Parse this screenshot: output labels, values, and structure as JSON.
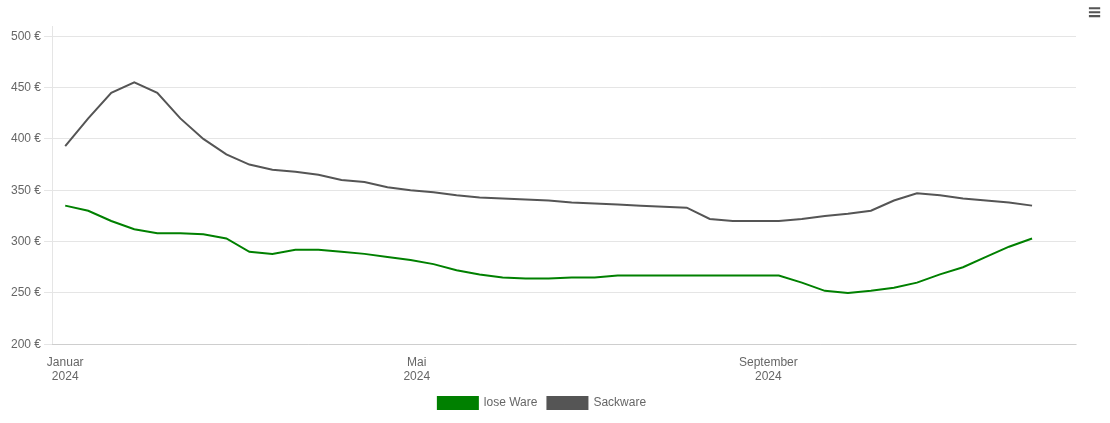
{
  "chart_data": {
    "type": "line",
    "x": [
      0,
      0.2619047619,
      0.5238095238,
      0.7857142857,
      1.0476190476,
      1.3095238095,
      1.5714285714,
      1.8333333333,
      2.0952380952,
      2.3571428571,
      2.619047619,
      2.880952381,
      3.1428571429,
      3.4047619048,
      3.6666666667,
      3.9285714286,
      4.1904761905,
      4.4523809524,
      4.7142857143,
      4.9761904762,
      5.2380952381,
      5.5,
      5.7619047619,
      6.0238095238,
      6.2857142857,
      6.5476190476,
      6.8095238095,
      7.0714285714,
      7.3333333333,
      7.5952380952,
      7.8571428571,
      8.119047619,
      8.380952381,
      8.6428571429,
      8.9047619048,
      9.1666666667,
      9.4285714286,
      9.6904761905,
      9.9523809524,
      10.2142857143,
      10.4761904762,
      10.7380952381,
      11
    ],
    "series": [
      {
        "name": "lose Ware",
        "color": "#008000",
        "values": [
          335,
          330,
          320,
          312,
          308,
          308,
          307,
          303,
          290,
          288,
          292,
          292,
          290,
          288,
          285,
          282,
          278,
          272,
          268,
          265,
          264,
          264,
          265,
          265,
          267,
          267,
          267,
          267,
          267,
          267,
          267,
          267,
          260,
          252,
          250,
          252,
          255,
          260,
          268,
          275,
          285,
          295,
          303
        ]
      },
      {
        "name": "Sackware",
        "color": "#555555",
        "values": [
          393,
          420,
          445,
          455,
          445,
          420,
          400,
          385,
          375,
          370,
          368,
          365,
          360,
          358,
          353,
          350,
          348,
          345,
          343,
          342,
          341,
          340,
          338,
          337,
          336,
          335,
          334,
          333,
          322,
          320,
          320,
          320,
          322,
          325,
          327,
          330,
          340,
          347,
          345,
          342,
          340,
          338,
          335
        ]
      }
    ],
    "xlim": [
      -0.15,
      11.5
    ],
    "xticks": [
      {
        "value": 0,
        "label": "Januar\n2024"
      },
      {
        "value": 4,
        "label": "Mai\n2024"
      },
      {
        "value": 8,
        "label": "September\n2024"
      }
    ],
    "ylim": [
      200,
      510
    ],
    "yticks": [
      {
        "value": 200,
        "label": "200 €"
      },
      {
        "value": 250,
        "label": "250 €"
      },
      {
        "value": 300,
        "label": "300 €"
      },
      {
        "value": 350,
        "label": "350 €"
      },
      {
        "value": 400,
        "label": "400 €"
      },
      {
        "value": 450,
        "label": "450 €"
      },
      {
        "value": 500,
        "label": "500 €"
      }
    ],
    "grid": "y",
    "legend": "bottom",
    "annotations": [
      "≡"
    ]
  }
}
